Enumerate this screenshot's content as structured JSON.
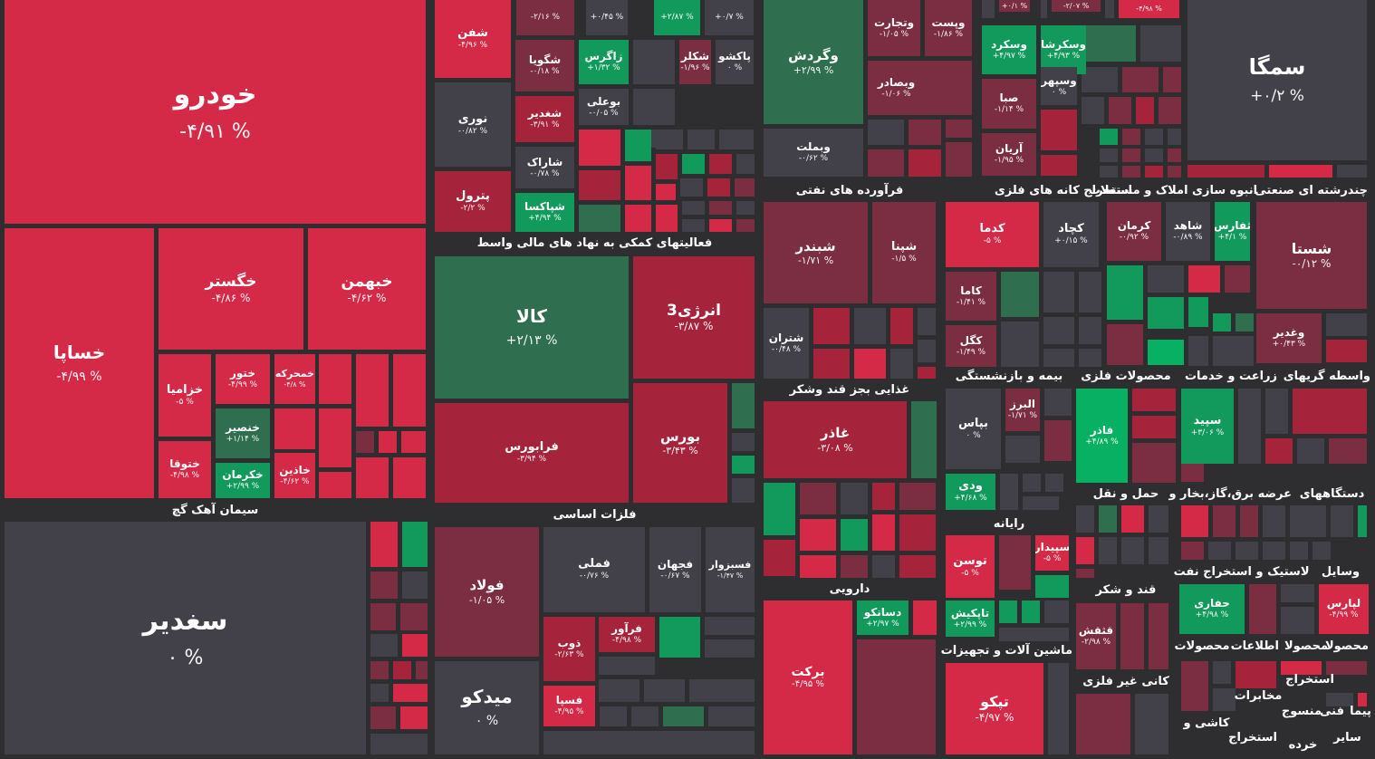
{
  "chart_data": {
    "type": "treemap",
    "colors": {
      "strong_red": "#d42a47",
      "red": "#a5233b",
      "dark_red": "#7b2d42",
      "neutral": "#424049",
      "green_dark": "#2f6e4f",
      "green": "#119a5c",
      "green_bright": "#07b062"
    },
    "sectors": [
      {
        "name": "سیمان آهک گچ"
      },
      {
        "name": "فعالیتهای کمکی به نهاد های مالی واسط"
      },
      {
        "name": "فلزات اساسی"
      },
      {
        "name": "فرآورده های نفتی"
      },
      {
        "name": "استخراج کانه های فلزی"
      },
      {
        "name": "انبوه سازی املاک و مستغلات"
      },
      {
        "name": "چندرشته ای صنعتی"
      },
      {
        "name": "غذایی بجز قند وشکر"
      },
      {
        "name": "بیمه و بازنشستگی"
      },
      {
        "name": "محصولات فلزی"
      },
      {
        "name": "زراعت و خدمات"
      },
      {
        "name": "واسطه گریهای"
      },
      {
        "name": "دارویی"
      },
      {
        "name": "رایانه"
      },
      {
        "name": "حمل و نقل"
      },
      {
        "name": "عرضه برق،گاز،بخار و"
      },
      {
        "name": "دستگاههای"
      },
      {
        "name": "قند و شکر"
      },
      {
        "name": "استخراج نفت"
      },
      {
        "name": "لاستیک و"
      },
      {
        "name": "وسایل"
      },
      {
        "name": "ماشین آلات و تجهیزات"
      },
      {
        "name": "محصولات"
      },
      {
        "name": "اطلاعات"
      },
      {
        "name": "محصولا"
      },
      {
        "name": "استخراج"
      },
      {
        "name": "کانی غیر فلزی"
      },
      {
        "name": "مخابرات"
      },
      {
        "name": "کاشی و"
      },
      {
        "name": "منسوج"
      },
      {
        "name": "فنی"
      },
      {
        "name": "پیما"
      },
      {
        "name": "خرده"
      },
      {
        "name": "سایر"
      }
    ],
    "stocks": [
      {
        "symbol": "خودرو",
        "change": "-۴/۹۱ %"
      },
      {
        "symbol": "خساپا",
        "change": "-۴/۹۹ %"
      },
      {
        "symbol": "خگستر",
        "change": "-۴/۸۶ %"
      },
      {
        "symbol": "خبهمن",
        "change": "-۴/۶۲ %"
      },
      {
        "symbol": "خزامیا",
        "change": "-۵ %"
      },
      {
        "symbol": "ختور",
        "change": "-۴/۹۹ %"
      },
      {
        "symbol": "خمحرکه",
        "change": "-۴/۸ %"
      },
      {
        "symbol": "خنصیر",
        "change": "+۱/۱۴ %"
      },
      {
        "symbol": "ختوقا",
        "change": "-۴/۹۸ %"
      },
      {
        "symbol": "خکرمان",
        "change": "+۲/۹۹ %"
      },
      {
        "symbol": "خاذین",
        "change": "-۴/۶۲ %"
      },
      {
        "symbol": "شفن",
        "change": "-۴/۹۶ %"
      },
      {
        "symbol": "نوری",
        "change": "-۰/۸۲ %"
      },
      {
        "symbol": "پترول",
        "change": "-۲/۲ %"
      },
      {
        "symbol": "شگویا",
        "change": "-۰/۱۸ %"
      },
      {
        "symbol": "زاگرس",
        "change": "+۱/۳۲ %"
      },
      {
        "symbol": "شکلر",
        "change": "-۱/۹۶ %"
      },
      {
        "symbol": "پاکشو",
        "change": "۰ %"
      },
      {
        "symbol": "شغدیر",
        "change": "-۳/۹۱ %"
      },
      {
        "symbol": "بوعلی",
        "change": "-۰/۰۵ %"
      },
      {
        "symbol": "شاراک",
        "change": "-۰/۷۸ %"
      },
      {
        "symbol": "شپاکسا",
        "change": "+۴/۹۴ %"
      },
      {
        "symbol": "کالا",
        "change": "+۲/۱۳ %"
      },
      {
        "symbol": "انرژی3",
        "change": "-۳/۸۷ %"
      },
      {
        "symbol": "فرابورس",
        "change": "-۳/۹۴ %"
      },
      {
        "symbol": "بورس",
        "change": "-۳/۴۳ %"
      },
      {
        "symbol": "سغدیر",
        "change": "۰ %"
      },
      {
        "symbol": "فولاد",
        "change": "-۱/۰۵ %"
      },
      {
        "symbol": "فملی",
        "change": "-۰/۷۶ %"
      },
      {
        "symbol": "فجهان",
        "change": "-۰/۶۷ %"
      },
      {
        "symbol": "فسبزوار",
        "change": "-۱/۴۷ %"
      },
      {
        "symbol": "فرآور",
        "change": "-۴/۹۸ %"
      },
      {
        "symbol": "ذوب",
        "change": "-۲/۶۳ %"
      },
      {
        "symbol": "فسپا",
        "change": "-۴/۹۵ %"
      },
      {
        "symbol": "میدکو",
        "change": "۰ %"
      },
      {
        "symbol": "وگردش",
        "change": "+۲/۹۹ %"
      },
      {
        "symbol": "وبملت",
        "change": "-۰/۶۲ %"
      },
      {
        "symbol": "وتجارت",
        "change": "-۱/۰۵ %"
      },
      {
        "symbol": "وپست",
        "change": "-۱/۸۶ %"
      },
      {
        "symbol": "وبصادر",
        "change": "-۱/۰۶ %"
      },
      {
        "symbol": "وسکرد",
        "change": "+۴/۹۷ %"
      },
      {
        "symbol": "وسکرشا",
        "change": "+۴/۹۳ %"
      },
      {
        "symbol": "وسپهر",
        "change": "۰ %"
      },
      {
        "symbol": "صبا",
        "change": "-۱/۱۴ %"
      },
      {
        "symbol": "آریان",
        "change": "-۱/۹۵ %"
      },
      {
        "symbol": "سمگا",
        "change": "+۰/۲ %"
      },
      {
        "symbol": "شبندر",
        "change": "-۱/۷۱ %"
      },
      {
        "symbol": "شپنا",
        "change": "-۱/۵ %"
      },
      {
        "symbol": "شتران",
        "change": "-۰/۴۸ %"
      },
      {
        "symbol": "کدما",
        "change": "-۵ %"
      },
      {
        "symbol": "کچاد",
        "change": "+۰/۱۵ %"
      },
      {
        "symbol": "کرمان",
        "change": "-۰/۹۲ %"
      },
      {
        "symbol": "شاهد",
        "change": "-۰/۸۹ %"
      },
      {
        "symbol": "ثفارس",
        "change": "+۴/۱ %"
      },
      {
        "symbol": "شستا",
        "change": "-۰/۱۲ %"
      },
      {
        "symbol": "کاما",
        "change": "-۱/۴۱ %"
      },
      {
        "symbol": "کگل",
        "change": "-۱/۴۹ %"
      },
      {
        "symbol": "وغدیر",
        "change": "+۰/۴۳ %"
      },
      {
        "symbol": "غاذر",
        "change": "-۳/۰۸ %"
      },
      {
        "symbol": "بپاس",
        "change": "۰ %"
      },
      {
        "symbol": "البرز",
        "change": "-۱/۷۱ %"
      },
      {
        "symbol": "ودی",
        "change": "+۴/۶۸ %"
      },
      {
        "symbol": "فاذر",
        "change": "+۴/۸۹ %"
      },
      {
        "symbol": "سپید",
        "change": "+۳/۰۶ %"
      },
      {
        "symbol": "توسن",
        "change": "-۵ %"
      },
      {
        "symbol": "سپیدار",
        "change": "-۵ %"
      },
      {
        "symbol": "تاپکیش",
        "change": "+۲/۹۹ %"
      },
      {
        "symbol": "دسانکو",
        "change": "+۲/۹۷ %"
      },
      {
        "symbol": "برکت",
        "change": "-۴/۹۵ %"
      },
      {
        "symbol": "تپکو",
        "change": "-۴/۹۷ %"
      },
      {
        "symbol": "قثقش",
        "change": "-۲/۹۸ %"
      },
      {
        "symbol": "حفاری",
        "change": "+۴/۹۸ %"
      },
      {
        "symbol": "لپارس",
        "change": "-۴/۹۹ %"
      },
      {
        "symbol": "",
        "change": "-۲/۱۶ %"
      },
      {
        "symbol": "",
        "change": "+۰/۴۵ %"
      },
      {
        "symbol": "",
        "change": "+۲/۸۷ %"
      },
      {
        "symbol": "",
        "change": "+۰/۷ %"
      },
      {
        "symbol": "",
        "change": "+۰/۱ %"
      },
      {
        "symbol": "",
        "change": "-۲/۰۷ %"
      },
      {
        "symbol": "",
        "change": "-۴/۹۸ %"
      }
    ]
  }
}
